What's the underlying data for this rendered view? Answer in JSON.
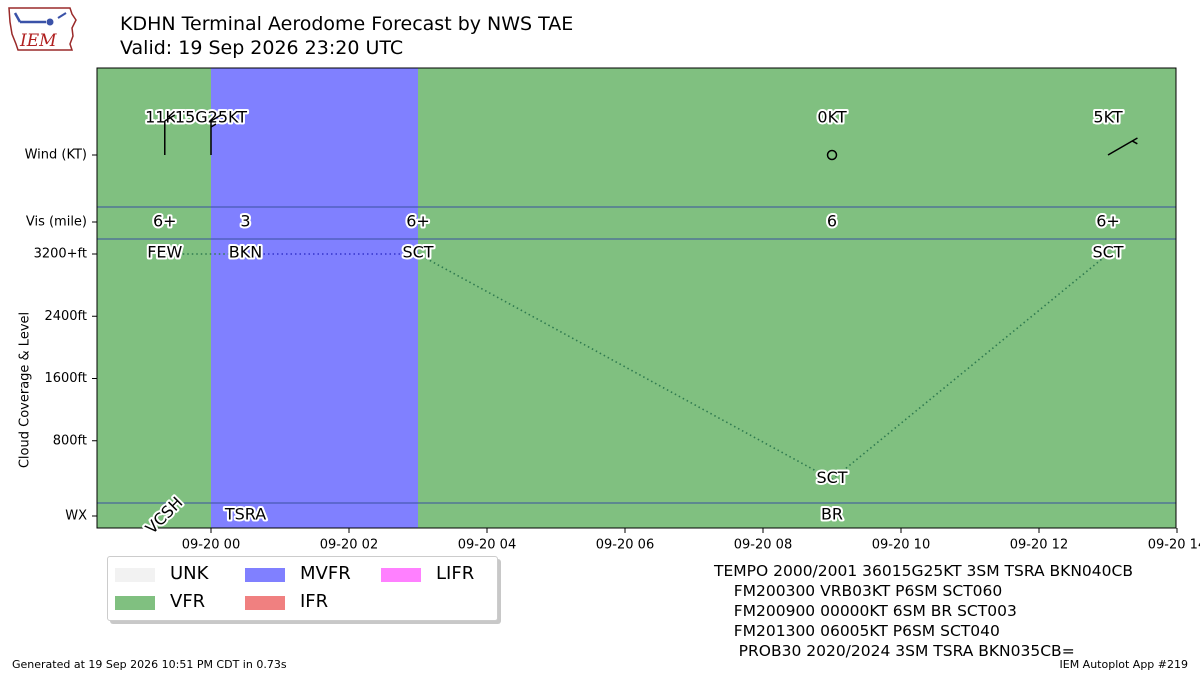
{
  "header": {
    "title": "KDHN Terminal Aerodome Forecast by NWS TAE",
    "subtitle": "Valid: 19 Sep 2026 23:20 UTC",
    "logo_text": "IEM"
  },
  "colors": {
    "UNK": "#f2f2f2",
    "VFR": "#80c080",
    "MVFR": "#8080ff",
    "IFR": "#f08080",
    "LIFR": "#ff80ff",
    "frame_line": "#3a4fa0",
    "cloud_line_vfr": "#2f7a4f",
    "cloud_line_mvfr": "#3333cc"
  },
  "chart_data": {
    "type": "timeline",
    "x_axis": {
      "ticks": [
        "09-20 00",
        "09-20 02",
        "09-20 04",
        "09-20 06",
        "09-20 08",
        "09-20 10",
        "09-20 12",
        "09-20 14"
      ],
      "range_hours": [
        -1.65,
        14
      ]
    },
    "y_axis": {
      "label": "Cloud Coverage & Level",
      "row_labels": [
        "Wind (KT)",
        "Vis (mile)",
        "WX"
      ],
      "cloud_ticks": [
        "3200+ft",
        "2400ft",
        "1600ft",
        "800ft"
      ],
      "cloud_tick_values": [
        3200,
        2400,
        1600,
        800
      ]
    },
    "periods": [
      {
        "start": -1.65,
        "end": 0,
        "category": "VFR"
      },
      {
        "start": 0,
        "end": 3,
        "category": "MVFR"
      },
      {
        "start": 3,
        "end": 14,
        "category": "VFR"
      }
    ],
    "wind": [
      {
        "hour": -0.67,
        "label": "11KT",
        "dir": 360,
        "speed": 11,
        "calm": false
      },
      {
        "hour": 0,
        "label": "15G25KT",
        "dir": 360,
        "speed": 15,
        "calm": false
      },
      {
        "hour": 9,
        "label": "0KT",
        "dir": 0,
        "speed": 0,
        "calm": true
      },
      {
        "hour": 13,
        "label": "5KT",
        "dir": 60,
        "speed": 5,
        "calm": false
      }
    ],
    "visibility": [
      {
        "hour": -0.67,
        "label": "6+"
      },
      {
        "hour": 0.5,
        "label": "3"
      },
      {
        "hour": 3,
        "label": "6+"
      },
      {
        "hour": 9,
        "label": "6"
      },
      {
        "hour": 13,
        "label": "6+"
      }
    ],
    "clouds": [
      {
        "hour": -0.67,
        "level_ft": 3200,
        "label": "FEW"
      },
      {
        "hour": 0.5,
        "level_ft": 3200,
        "label": "BKN"
      },
      {
        "hour": 3,
        "level_ft": 3200,
        "label": "SCT"
      },
      {
        "hour": 9,
        "level_ft": 300,
        "label": "SCT"
      },
      {
        "hour": 13,
        "level_ft": 3200,
        "label": "SCT"
      }
    ],
    "weather": [
      {
        "hour": -0.67,
        "label": "VCSH",
        "rotated": true
      },
      {
        "hour": 0.5,
        "label": "TSRA",
        "rotated": false
      },
      {
        "hour": 9,
        "label": "BR",
        "rotated": false
      }
    ]
  },
  "legend": [
    {
      "label": "UNK",
      "key": "UNK"
    },
    {
      "label": "MVFR",
      "key": "MVFR"
    },
    {
      "label": "LIFR",
      "key": "LIFR"
    },
    {
      "label": "VFR",
      "key": "VFR"
    },
    {
      "label": "IFR",
      "key": "IFR"
    }
  ],
  "raw_taf": [
    "TEMPO 2000/2001 36015G25KT 3SM TSRA BKN040CB",
    "    FM200300 VRB03KT P6SM SCT060",
    "    FM200900 00000KT 6SM BR SCT003",
    "    FM201300 06005KT P6SM SCT040",
    "     PROB30 2020/2024 3SM TSRA BKN035CB="
  ],
  "footer": {
    "left": "Generated at 19 Sep 2026 10:51 PM CDT in 0.73s",
    "right": "IEM Autoplot App #219"
  }
}
